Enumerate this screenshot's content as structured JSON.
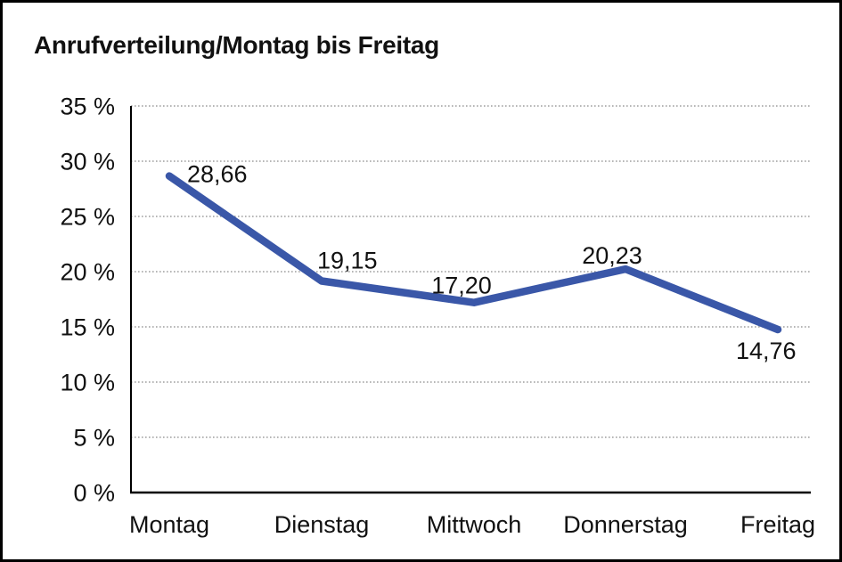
{
  "chart_data": {
    "type": "line",
    "title": "Anrufverteilung/Montag bis Freitag",
    "categories": [
      "Montag",
      "Dienstag",
      "Mittwoch",
      "Donnerstag",
      "Freitag"
    ],
    "series": [
      {
        "name": "Anrufverteilung",
        "values": [
          28.66,
          19.15,
          17.2,
          20.23,
          14.76
        ]
      }
    ],
    "data_labels": [
      "28,66",
      "19,15",
      "17,20",
      "20,23",
      "14,76"
    ],
    "xlabel": "",
    "ylabel": "",
    "ylim": [
      0,
      35
    ],
    "y_step": 5,
    "y_tick_labels": [
      "0 %",
      "5 %",
      "10 %",
      "15 %",
      "20 %",
      "25 %",
      "30 %",
      "35 %"
    ],
    "grid": "horizontal-dotted",
    "legend_position": "none",
    "line_color": "#3A57A8",
    "axis_color": "#000000",
    "grid_color": "#8a8a8a",
    "text_color": "#111111",
    "background_color": "#ffffff",
    "frame_color": "#000000"
  }
}
